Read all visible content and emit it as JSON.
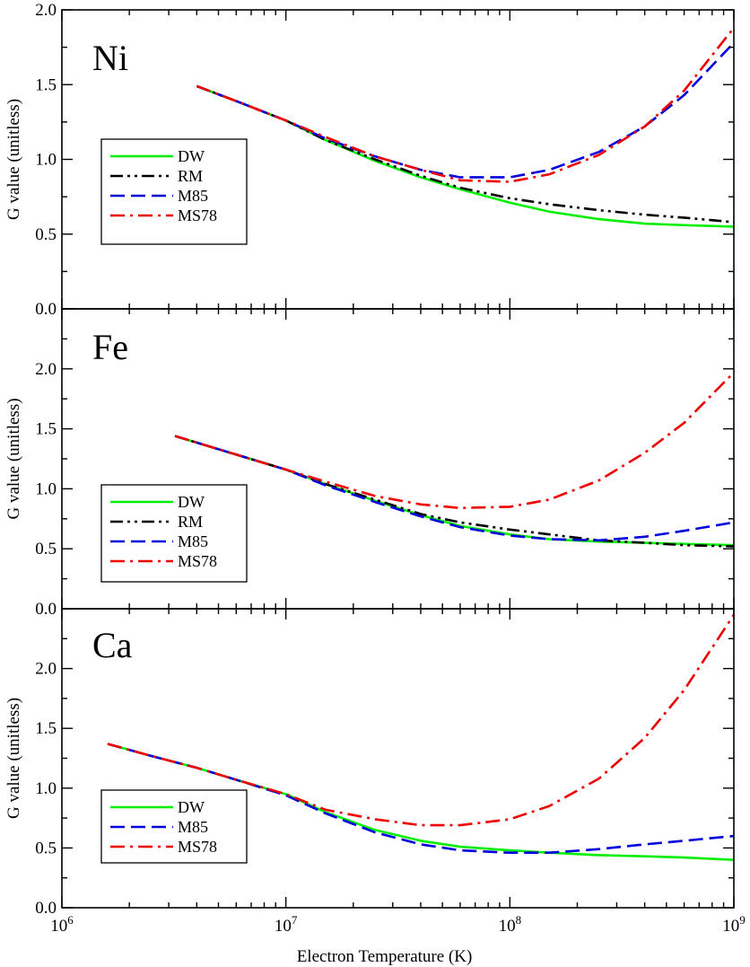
{
  "chart_data": [
    {
      "type": "line",
      "panel_title": "Ni",
      "ylabel": "G value (unitless)",
      "xlabel": "Electron Temperature (K)",
      "xscale": "log",
      "xlim": [
        1000000,
        1000000000
      ],
      "ylim": [
        0.0,
        2.0
      ],
      "yticks": [
        0.0,
        0.5,
        1.0,
        1.5,
        2.0
      ],
      "ytick_labels": [
        "0.0",
        "0.5",
        "1.0",
        "1.5",
        "2.0"
      ],
      "legend_position": "left",
      "series": [
        {
          "name": "DW",
          "color": "#00ee00",
          "dash": "solid",
          "x": [
            4000000,
            6000000,
            10000000,
            15000000,
            25000000,
            40000000,
            60000000,
            100000000,
            150000000,
            250000000,
            400000000,
            600000000,
            1000000000
          ],
          "y": [
            1.49,
            1.39,
            1.26,
            1.13,
            0.99,
            0.88,
            0.8,
            0.71,
            0.65,
            0.6,
            0.57,
            0.56,
            0.55
          ]
        },
        {
          "name": "RM",
          "color": "#000000",
          "dash": "dashdotdot",
          "x": [
            4000000,
            6000000,
            10000000,
            15000000,
            25000000,
            40000000,
            60000000,
            100000000,
            150000000,
            250000000,
            400000000,
            600000000,
            1000000000
          ],
          "y": [
            1.49,
            1.39,
            1.26,
            1.13,
            1.0,
            0.89,
            0.81,
            0.74,
            0.7,
            0.66,
            0.63,
            0.61,
            0.58
          ]
        },
        {
          "name": "M85",
          "color": "#0000dd",
          "dash": "dash",
          "x": [
            4000000,
            6000000,
            10000000,
            15000000,
            25000000,
            40000000,
            60000000,
            100000000,
            150000000,
            250000000,
            400000000,
            600000000,
            1000000000
          ],
          "y": [
            1.49,
            1.39,
            1.26,
            1.14,
            1.02,
            0.93,
            0.88,
            0.88,
            0.93,
            1.05,
            1.22,
            1.43,
            1.78
          ]
        },
        {
          "name": "MS78",
          "color": "#ee0000",
          "dash": "dashdot",
          "x": [
            4000000,
            6000000,
            10000000,
            15000000,
            25000000,
            40000000,
            60000000,
            100000000,
            150000000,
            250000000,
            400000000,
            600000000,
            1000000000
          ],
          "y": [
            1.49,
            1.39,
            1.26,
            1.15,
            1.02,
            0.93,
            0.86,
            0.85,
            0.9,
            1.03,
            1.22,
            1.46,
            1.88
          ]
        }
      ]
    },
    {
      "type": "line",
      "panel_title": "Fe",
      "ylabel": "G value (unitless)",
      "xlabel": "Electron Temperature (K)",
      "xscale": "log",
      "xlim": [
        1000000,
        1000000000
      ],
      "ylim": [
        0.0,
        2.5
      ],
      "yticks": [
        0.0,
        0.5,
        1.0,
        1.5,
        2.0
      ],
      "ytick_labels": [
        "0.0",
        "0.5",
        "1.0",
        "1.5",
        "2.0"
      ],
      "legend_position": "bottom-left",
      "series": [
        {
          "name": "DW",
          "color": "#00ee00",
          "dash": "solid",
          "x": [
            3200000,
            5000000,
            10000000,
            15000000,
            25000000,
            40000000,
            60000000,
            100000000,
            150000000,
            250000000,
            400000000,
            600000000,
            1000000000
          ],
          "y": [
            1.44,
            1.33,
            1.16,
            1.04,
            0.9,
            0.78,
            0.69,
            0.62,
            0.58,
            0.56,
            0.55,
            0.54,
            0.53
          ]
        },
        {
          "name": "RM",
          "color": "#000000",
          "dash": "dashdotdot",
          "x": [
            3200000,
            5000000,
            10000000,
            15000000,
            25000000,
            40000000,
            60000000,
            100000000,
            150000000,
            250000000,
            400000000,
            600000000,
            1000000000
          ],
          "y": [
            1.44,
            1.33,
            1.16,
            1.04,
            0.91,
            0.79,
            0.72,
            0.66,
            0.62,
            0.57,
            0.55,
            0.53,
            0.52
          ]
        },
        {
          "name": "M85",
          "color": "#0000dd",
          "dash": "dash",
          "x": [
            3200000,
            5000000,
            10000000,
            15000000,
            25000000,
            40000000,
            60000000,
            100000000,
            150000000,
            250000000,
            400000000,
            600000000,
            1000000000
          ],
          "y": [
            1.44,
            1.33,
            1.16,
            1.03,
            0.89,
            0.77,
            0.68,
            0.61,
            0.58,
            0.57,
            0.6,
            0.65,
            0.72
          ]
        },
        {
          "name": "MS78",
          "color": "#ee0000",
          "dash": "dashdot",
          "x": [
            3200000,
            5000000,
            10000000,
            15000000,
            25000000,
            40000000,
            60000000,
            100000000,
            150000000,
            250000000,
            400000000,
            600000000,
            1000000000
          ],
          "y": [
            1.44,
            1.33,
            1.16,
            1.06,
            0.94,
            0.87,
            0.84,
            0.85,
            0.91,
            1.07,
            1.3,
            1.55,
            1.97
          ]
        }
      ]
    },
    {
      "type": "line",
      "panel_title": "Ca",
      "ylabel": "G value (unitless)",
      "xlabel": "Electron Temperature (K)",
      "xscale": "log",
      "xlim": [
        1000000,
        1000000000
      ],
      "ylim": [
        0.0,
        2.5
      ],
      "yticks": [
        0.0,
        0.5,
        1.0,
        1.5,
        2.0
      ],
      "ytick_labels": [
        "0.0",
        "0.5",
        "1.0",
        "1.5",
        "2.0"
      ],
      "xticks": [
        1000000,
        10000000,
        100000000,
        1000000000
      ],
      "xtick_labels": [
        {
          "base": "10",
          "exp": "6"
        },
        {
          "base": "10",
          "exp": "7"
        },
        {
          "base": "10",
          "exp": "8"
        },
        {
          "base": "10",
          "exp": "9"
        }
      ],
      "legend_position": "bottom-left",
      "series": [
        {
          "name": "DW",
          "color": "#00ee00",
          "dash": "solid",
          "x": [
            1600000,
            2500000,
            4000000,
            6000000,
            10000000,
            15000000,
            25000000,
            40000000,
            60000000,
            100000000,
            150000000,
            250000000,
            400000000,
            600000000,
            1000000000
          ],
          "y": [
            1.37,
            1.27,
            1.17,
            1.07,
            0.95,
            0.8,
            0.65,
            0.56,
            0.51,
            0.48,
            0.46,
            0.44,
            0.43,
            0.42,
            0.4
          ]
        },
        {
          "name": "M85",
          "color": "#0000dd",
          "dash": "dash",
          "x": [
            1600000,
            2500000,
            4000000,
            6000000,
            10000000,
            15000000,
            25000000,
            40000000,
            60000000,
            100000000,
            150000000,
            250000000,
            400000000,
            600000000,
            1000000000
          ],
          "y": [
            1.37,
            1.27,
            1.17,
            1.07,
            0.94,
            0.79,
            0.63,
            0.53,
            0.48,
            0.46,
            0.46,
            0.49,
            0.53,
            0.56,
            0.6
          ]
        },
        {
          "name": "MS78",
          "color": "#ee0000",
          "dash": "dashdot",
          "x": [
            1600000,
            2500000,
            4000000,
            6000000,
            10000000,
            15000000,
            25000000,
            40000000,
            60000000,
            100000000,
            150000000,
            250000000,
            400000000,
            600000000,
            1000000000
          ],
          "y": [
            1.37,
            1.27,
            1.17,
            1.07,
            0.95,
            0.82,
            0.74,
            0.69,
            0.69,
            0.74,
            0.85,
            1.08,
            1.42,
            1.82,
            2.45
          ]
        }
      ]
    }
  ]
}
